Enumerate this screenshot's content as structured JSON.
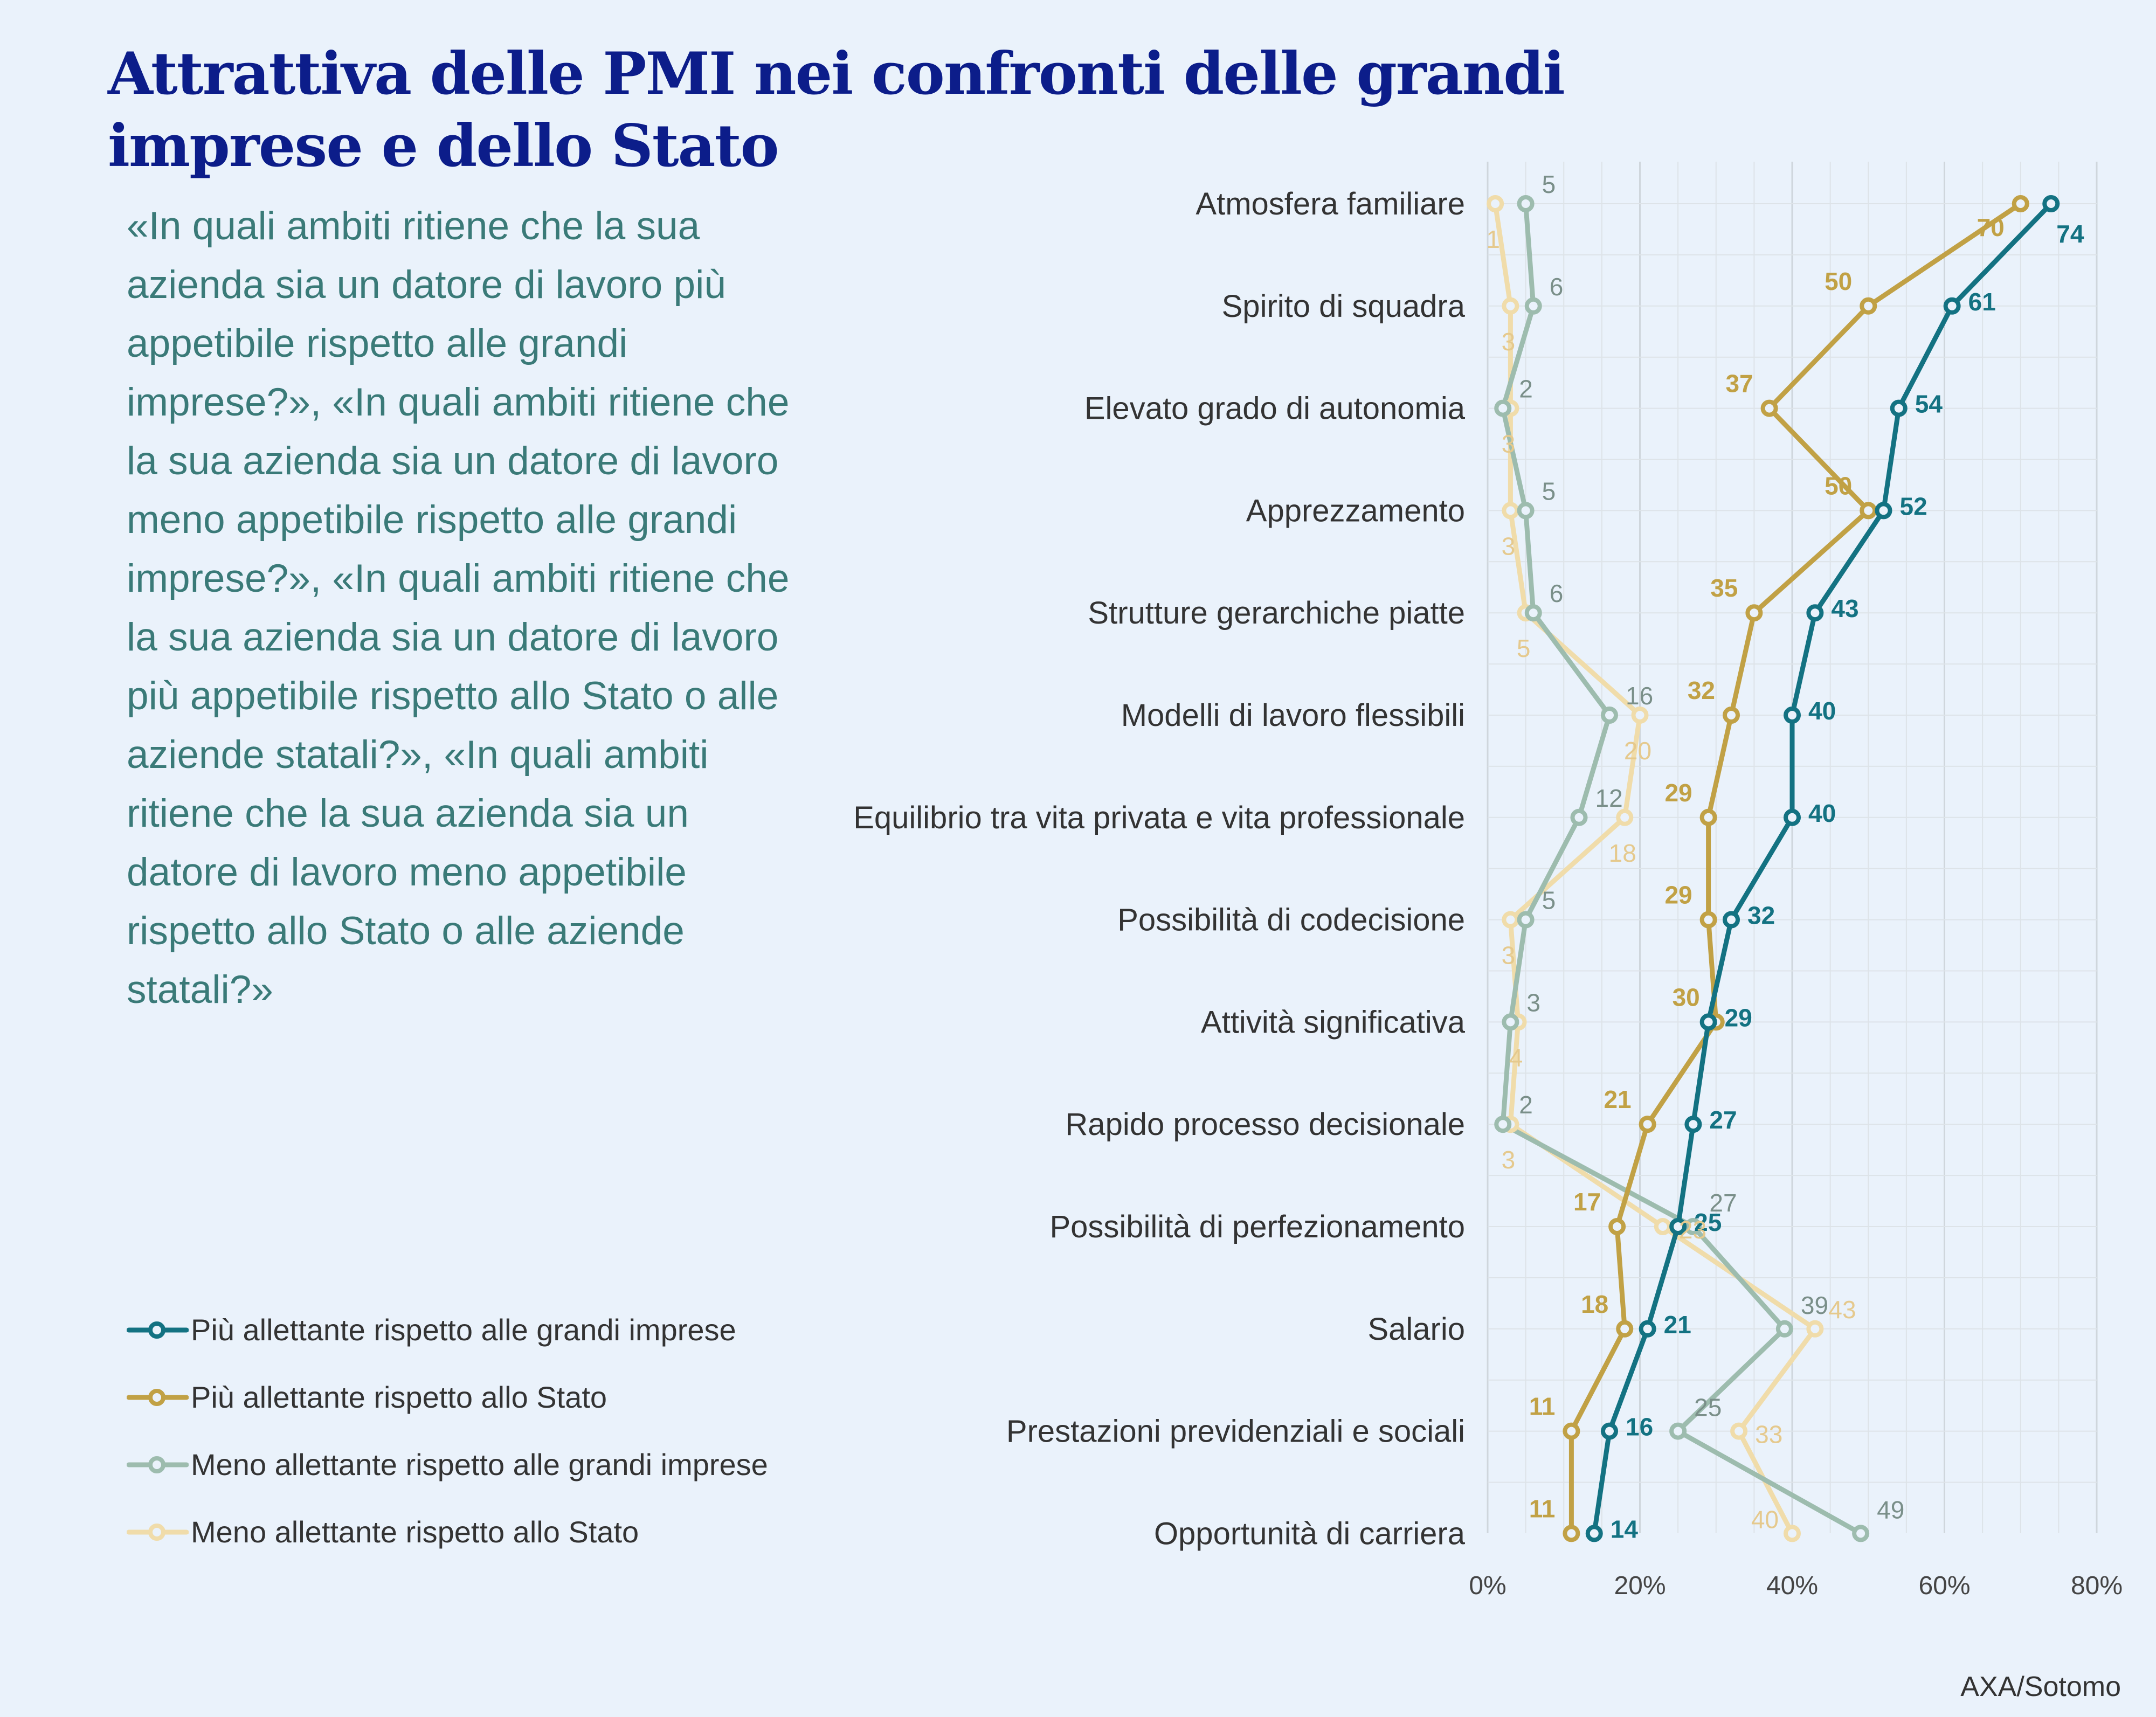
{
  "header": {
    "title": "Attrattiva delle PMI nei confronti delle grandi imprese e dello Stato",
    "question": "«In quali ambiti ritiene che la sua azienda sia un datore di lavoro più appetibile rispetto alle grandi imprese?», «In quali ambiti ritiene che la sua azienda sia un datore di lavoro meno appetibile rispetto alle grandi imprese?», «In quali ambiti ritiene che la sua azienda sia un datore di lavoro più appetibile rispetto allo Stato o alle aziende statali?», «In quali ambiti ritiene che la sua azienda sia un datore di lavoro meno appetibile rispetto allo Stato o alle aziende statali?»"
  },
  "source": "AXA/Sotomo",
  "chart_data": {
    "type": "line",
    "orientation": "horizontal",
    "categories": [
      "Atmosfera familiare",
      "Spirito di squadra",
      "Elevato grado di autonomia",
      "Apprezzamento",
      "Strutture gerarchiche piatte",
      "Modelli di lavoro flessibili",
      "Equilibrio tra vita privata e vita professionale",
      "Possibilità di codecisione",
      "Attività significativa",
      "Rapido processo decisionale",
      "Possibilità di perfezionamento",
      "Salario",
      "Prestazioni previdenziali e sociali",
      "Opportunità di carriera"
    ],
    "xlim": [
      0,
      80
    ],
    "x_ticks": [
      0,
      20,
      40,
      60,
      80
    ],
    "x_tick_labels": [
      "0%",
      "20%",
      "40%",
      "60%",
      "80%"
    ],
    "grid": true,
    "legend_position": "bottom-left",
    "series": [
      {
        "name": "Più allettante rispetto alle grandi imprese",
        "color": "#137282",
        "values": [
          74,
          61,
          54,
          52,
          43,
          40,
          40,
          32,
          29,
          27,
          25,
          21,
          16,
          14
        ]
      },
      {
        "name": "Più allettante rispetto allo Stato",
        "color": "#c1a145",
        "values": [
          70,
          50,
          37,
          50,
          35,
          32,
          29,
          29,
          30,
          21,
          17,
          18,
          11,
          11
        ]
      },
      {
        "name": "Meno allettante rispetto alle grandi imprese",
        "color": "#9dbcae",
        "label_color": "#7a8f89",
        "values": [
          5,
          6,
          2,
          5,
          6,
          16,
          12,
          5,
          3,
          2,
          27,
          39,
          25,
          49
        ]
      },
      {
        "name": "Meno allettante rispetto allo Stato",
        "color": "#f0dcaa",
        "label_color": "#e5c98d",
        "values": [
          1,
          3,
          3,
          3,
          5,
          20,
          18,
          3,
          4,
          3,
          23,
          43,
          33,
          40
        ]
      }
    ]
  }
}
